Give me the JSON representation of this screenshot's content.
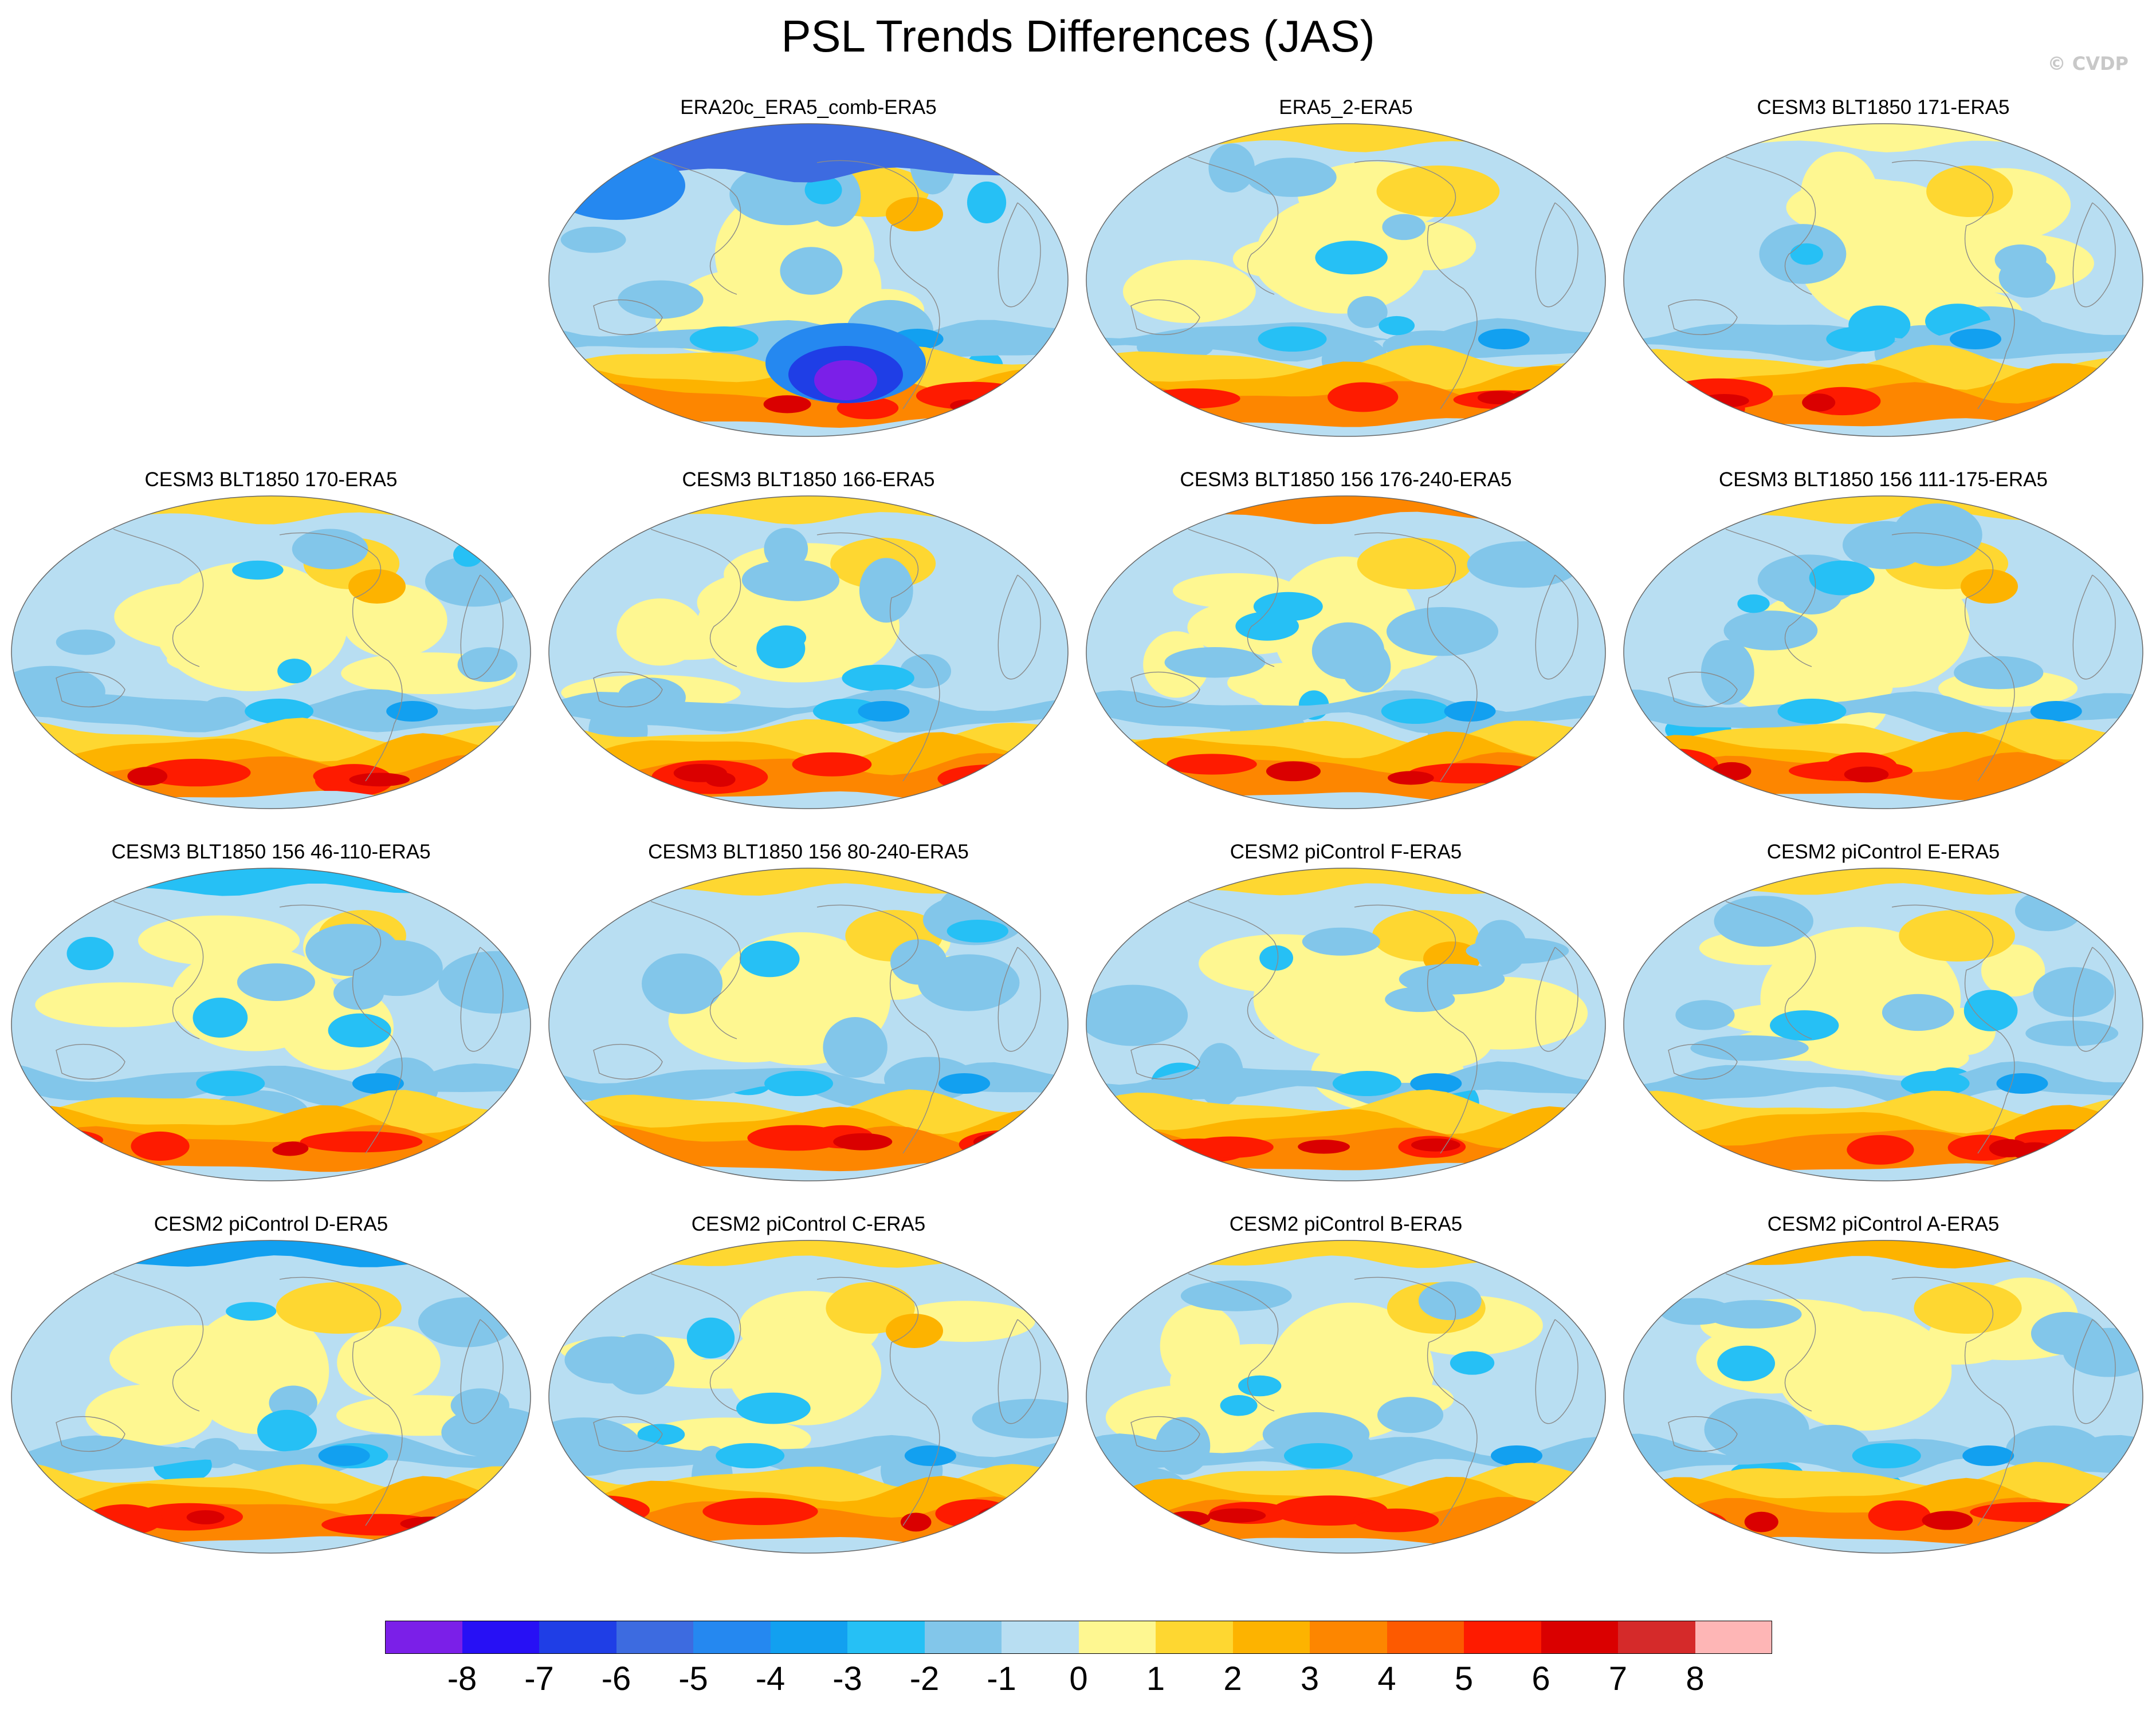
{
  "figure": {
    "title": "PSL Trends Differences (JAS)",
    "credit": "© CVDP"
  },
  "panels": [
    {
      "label": "ERA20c_ERA5_comb-ERA5",
      "row": 0,
      "col": 1,
      "variant": 0
    },
    {
      "label": "ERA5_2-ERA5",
      "row": 0,
      "col": 2,
      "variant": 1
    },
    {
      "label": "CESM3 BLT1850 171-ERA5",
      "row": 0,
      "col": 3,
      "variant": 2
    },
    {
      "label": "CESM3 BLT1850 170-ERA5",
      "row": 1,
      "col": 0,
      "variant": 3
    },
    {
      "label": "CESM3 BLT1850 166-ERA5",
      "row": 1,
      "col": 1,
      "variant": 4
    },
    {
      "label": "CESM3 BLT1850 156 176-240-ERA5",
      "row": 1,
      "col": 2,
      "variant": 5
    },
    {
      "label": "CESM3 BLT1850 156 111-175-ERA5",
      "row": 1,
      "col": 3,
      "variant": 6
    },
    {
      "label": "CESM3 BLT1850 156 46-110-ERA5",
      "row": 2,
      "col": 0,
      "variant": 7
    },
    {
      "label": "CESM3 BLT1850 156 80-240-ERA5",
      "row": 2,
      "col": 1,
      "variant": 8
    },
    {
      "label": "CESM2 piControl F-ERA5",
      "row": 2,
      "col": 2,
      "variant": 9
    },
    {
      "label": "CESM2 piControl E-ERA5",
      "row": 2,
      "col": 3,
      "variant": 10
    },
    {
      "label": "CESM2 piControl D-ERA5",
      "row": 3,
      "col": 0,
      "variant": 11
    },
    {
      "label": "CESM2 piControl C-ERA5",
      "row": 3,
      "col": 1,
      "variant": 12
    },
    {
      "label": "CESM2 piControl B-ERA5",
      "row": 3,
      "col": 2,
      "variant": 13
    },
    {
      "label": "CESM2 piControl A-ERA5",
      "row": 3,
      "col": 3,
      "variant": 14
    }
  ],
  "colorbar": {
    "labels": [
      "-8",
      "-7",
      "-6",
      "-5",
      "-4",
      "-3",
      "-2",
      "-1",
      "0",
      "1",
      "2",
      "3",
      "4",
      "5",
      "6",
      "7",
      "8"
    ],
    "colors": [
      "#7b1fe8",
      "#2710f5",
      "#1f3ee6",
      "#3d6be0",
      "#2588f0",
      "#12a0f0",
      "#26c0f5",
      "#82c6ea",
      "#b8def2",
      "#fef791",
      "#fed731",
      "#fdb300",
      "#fd8600",
      "#fd5a00",
      "#fe1b00",
      "#da0000",
      "#d52a2a",
      "#feb6b6"
    ]
  }
}
